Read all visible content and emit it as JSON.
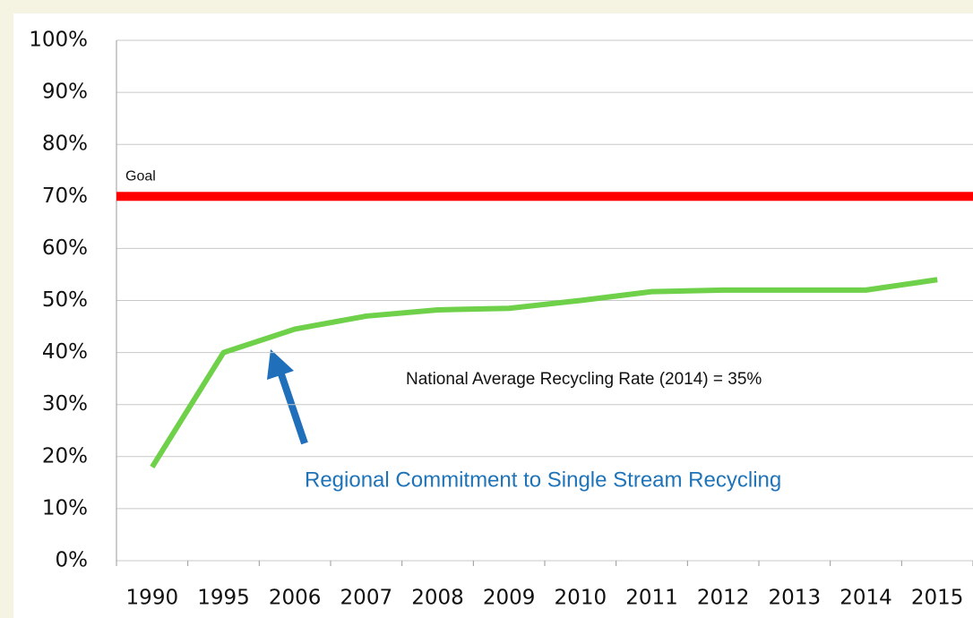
{
  "chart_data": {
    "type": "line",
    "categories": [
      "1990",
      "1995",
      "2006",
      "2007",
      "2008",
      "2009",
      "2010",
      "2011",
      "2012",
      "2013",
      "2014",
      "2015"
    ],
    "values": [
      18,
      40,
      44.5,
      47,
      48.2,
      48.5,
      50,
      51.7,
      52,
      52,
      52,
      54
    ],
    "color": "#6fd04a",
    "ylim": [
      0,
      100
    ],
    "yticks": [
      {
        "value": 0,
        "label": "0%"
      },
      {
        "value": 10,
        "label": "10%"
      },
      {
        "value": 20,
        "label": "20%"
      },
      {
        "value": 30,
        "label": "30%"
      },
      {
        "value": 40,
        "label": "40%"
      },
      {
        "value": 50,
        "label": "50%"
      },
      {
        "value": 60,
        "label": "60%"
      },
      {
        "value": 70,
        "label": "70%"
      },
      {
        "value": 80,
        "label": "80%"
      },
      {
        "value": 90,
        "label": "90%"
      },
      {
        "value": 100,
        "label": "100%"
      }
    ],
    "grid": true,
    "goal": {
      "label": "Goal",
      "value": 70,
      "color": "#ff0000"
    },
    "annotations": [
      "National Average Recycling Rate (2014) = 35%",
      "Regional Commitment to Single Stream Recycling"
    ]
  }
}
